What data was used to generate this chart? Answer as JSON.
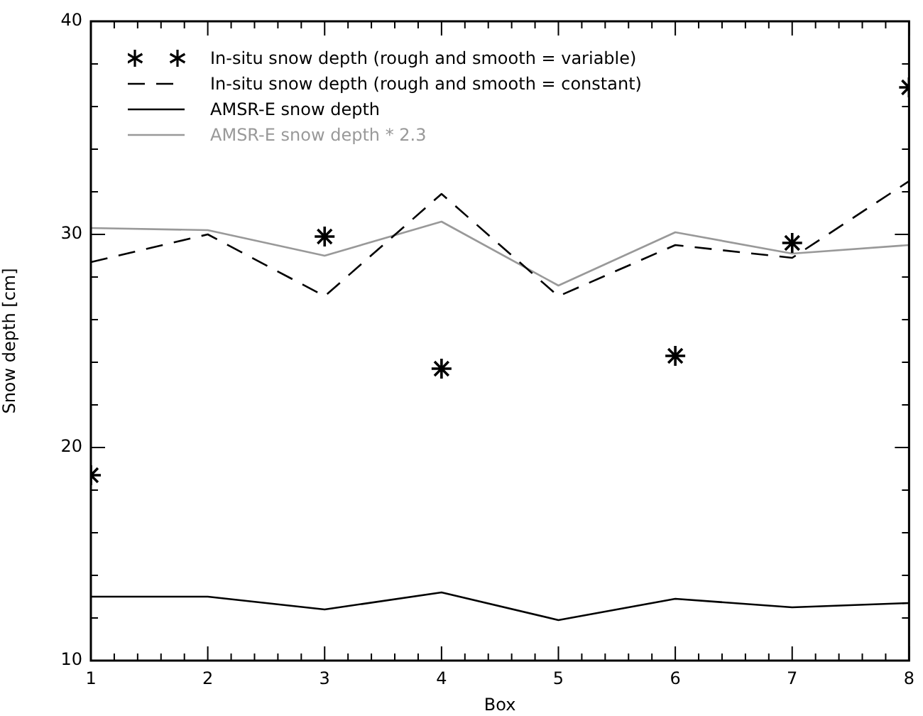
{
  "chart_data": {
    "type": "line",
    "xlabel": "Box",
    "ylabel": "Snow depth [cm]",
    "x": [
      1,
      2,
      3,
      4,
      5,
      6,
      7,
      8
    ],
    "xlim": [
      1,
      8
    ],
    "ylim": [
      10,
      40
    ],
    "xticks": [
      1,
      {
        "value": 1.2,
        "label": null
      },
      {
        "value": 1.4,
        "label": null
      },
      {
        "value": 1.6,
        "label": null
      },
      {
        "value": 1.8,
        "label": null
      },
      2,
      {
        "value": 2.2,
        "label": null
      },
      {
        "value": 2.4,
        "label": null
      },
      {
        "value": 2.6,
        "label": null
      },
      {
        "value": 2.8,
        "label": null
      },
      3,
      {
        "value": 3.2,
        "label": null
      },
      {
        "value": 3.4,
        "label": null
      },
      {
        "value": 3.6,
        "label": null
      },
      {
        "value": 3.8,
        "label": null
      },
      4,
      {
        "value": 4.2,
        "label": null
      },
      {
        "value": 4.4,
        "label": null
      },
      {
        "value": 4.6,
        "label": null
      },
      {
        "value": 4.8,
        "label": null
      },
      5,
      {
        "value": 5.2,
        "label": null
      },
      {
        "value": 5.4,
        "label": null
      },
      {
        "value": 5.6,
        "label": null
      },
      {
        "value": 5.8,
        "label": null
      },
      6,
      {
        "value": 6.2,
        "label": null
      },
      {
        "value": 6.4,
        "label": null
      },
      {
        "value": 6.6,
        "label": null
      },
      {
        "value": 6.8,
        "label": null
      },
      7,
      {
        "value": 7.2,
        "label": null
      },
      {
        "value": 7.4,
        "label": null
      },
      {
        "value": 7.6,
        "label": null
      },
      {
        "value": 7.8,
        "label": null
      },
      8
    ],
    "yticks": [
      10,
      {
        "value": 12,
        "label": null
      },
      {
        "value": 14,
        "label": null
      },
      {
        "value": 16,
        "label": null
      },
      {
        "value": 18,
        "label": null
      },
      20,
      {
        "value": 22,
        "label": null
      },
      {
        "value": 24,
        "label": null
      },
      {
        "value": 26,
        "label": null
      },
      {
        "value": 28,
        "label": null
      },
      30,
      {
        "value": 32,
        "label": null
      },
      {
        "value": 34,
        "label": null
      },
      {
        "value": 36,
        "label": null
      },
      {
        "value": 38,
        "label": null
      },
      40
    ],
    "grid": false,
    "legend": "top left",
    "series": [
      {
        "name": "In-situ snow depth (rough and smooth = variable)",
        "type": "scatter",
        "marker": "cross",
        "color": "#000000",
        "values": [
          18.7,
          null,
          29.9,
          23.7,
          null,
          24.3,
          29.6,
          36.9
        ]
      },
      {
        "name": "In-situ snow depth (rough and smooth = constant)",
        "line_style": "dashed",
        "marker": "none",
        "color": "#000000",
        "values": [
          28.7,
          30.0,
          27.1,
          31.9,
          27.1,
          29.5,
          28.9,
          32.5
        ]
      },
      {
        "name": "AMSR-E snow depth",
        "line_style": "solid",
        "marker": "none",
        "color": "#000000",
        "values": [
          13.0,
          13.0,
          12.4,
          13.2,
          11.9,
          12.9,
          12.5,
          12.7
        ]
      },
      {
        "name": "AMSR-E snow depth * 2.3",
        "line_style": "solid",
        "marker": "none",
        "color": "#999999",
        "values": [
          30.3,
          30.2,
          29.0,
          30.6,
          27.6,
          30.1,
          29.1,
          29.5
        ]
      }
    ]
  }
}
